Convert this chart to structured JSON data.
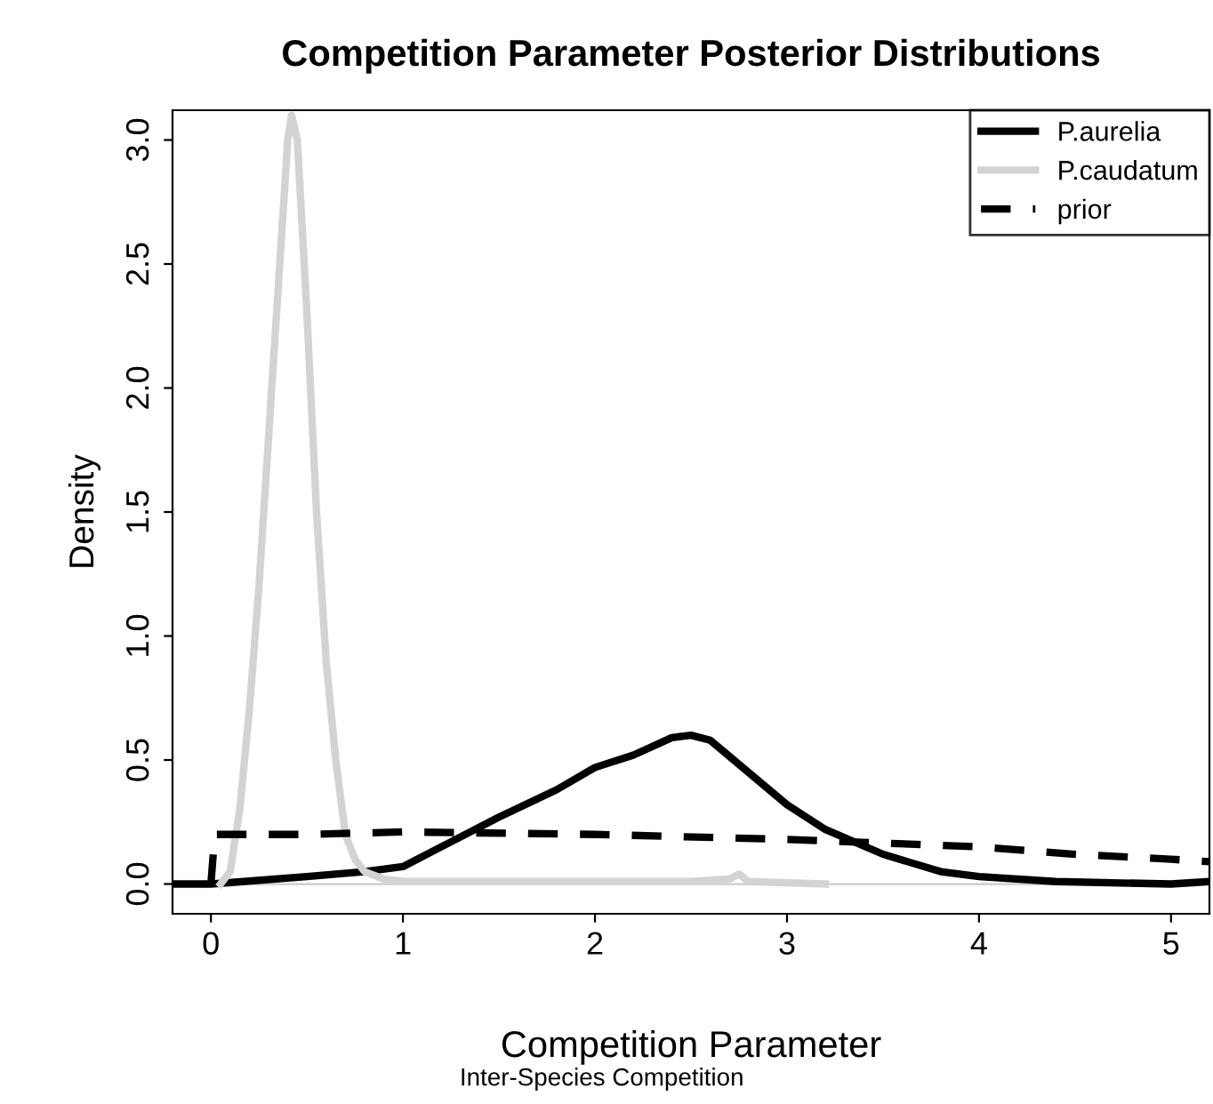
{
  "chart_data": {
    "type": "line",
    "title": "Competition Parameter Posterior Distributions",
    "xlabel": "Competition Parameter",
    "ylabel": "Density",
    "annotations": [
      "Inter-Species Competition"
    ],
    "xlim": [
      -0.2,
      5.2
    ],
    "xticks": [
      0,
      1,
      2,
      3,
      4,
      5
    ],
    "ylim": [
      -0.12,
      3.12
    ],
    "yticks": [
      {
        "value": 0,
        "label": "0.0"
      },
      0.5,
      {
        "value": 1,
        "label": "1.0"
      },
      1.5,
      {
        "value": 2,
        "label": "2.0"
      },
      2.5,
      {
        "value": 3,
        "label": "3.0"
      }
    ],
    "grid": false,
    "legend": "top right",
    "marker": "none",
    "ref_lines": [
      {
        "axis": "y",
        "value": 0,
        "color": "#d3d3d3",
        "line_style": "solid"
      }
    ],
    "series": [
      {
        "name": "P.aurelia",
        "color": "#000000",
        "line_style": "solid",
        "x": [
          -0.2,
          0.0,
          0.5,
          0.8,
          1.0,
          1.2,
          1.5,
          1.8,
          2.0,
          2.2,
          2.4,
          2.5,
          2.6,
          2.8,
          3.0,
          3.2,
          3.5,
          3.8,
          4.0,
          4.4,
          5.0,
          5.2
        ],
        "values": [
          0.0,
          0.0,
          0.03,
          0.05,
          0.07,
          0.15,
          0.27,
          0.38,
          0.47,
          0.52,
          0.59,
          0.6,
          0.58,
          0.45,
          0.32,
          0.22,
          0.12,
          0.05,
          0.03,
          0.01,
          0.0,
          0.01
        ]
      },
      {
        "name": "P.caudatum",
        "color": "#d3d3d3",
        "line_style": "solid",
        "x": [
          0.05,
          0.1,
          0.15,
          0.2,
          0.25,
          0.3,
          0.35,
          0.4,
          0.42,
          0.45,
          0.5,
          0.55,
          0.6,
          0.65,
          0.7,
          0.75,
          0.8,
          0.9,
          1.0,
          1.5,
          2.0,
          2.5,
          2.7,
          2.75,
          2.8,
          3.2
        ],
        "values": [
          0.0,
          0.05,
          0.3,
          0.7,
          1.2,
          1.8,
          2.4,
          3.0,
          3.1,
          3.0,
          2.3,
          1.5,
          0.9,
          0.5,
          0.2,
          0.1,
          0.05,
          0.02,
          0.01,
          0.01,
          0.01,
          0.01,
          0.02,
          0.04,
          0.01,
          0.0
        ]
      },
      {
        "name": "prior",
        "color": "#000000",
        "line_style": "dashed",
        "x": [
          0.0,
          0.02,
          0.5,
          1.0,
          2.0,
          3.0,
          4.0,
          4.5,
          5.0,
          5.2
        ],
        "values": [
          0.0,
          0.2,
          0.2,
          0.21,
          0.2,
          0.18,
          0.15,
          0.12,
          0.1,
          0.09
        ]
      }
    ]
  }
}
